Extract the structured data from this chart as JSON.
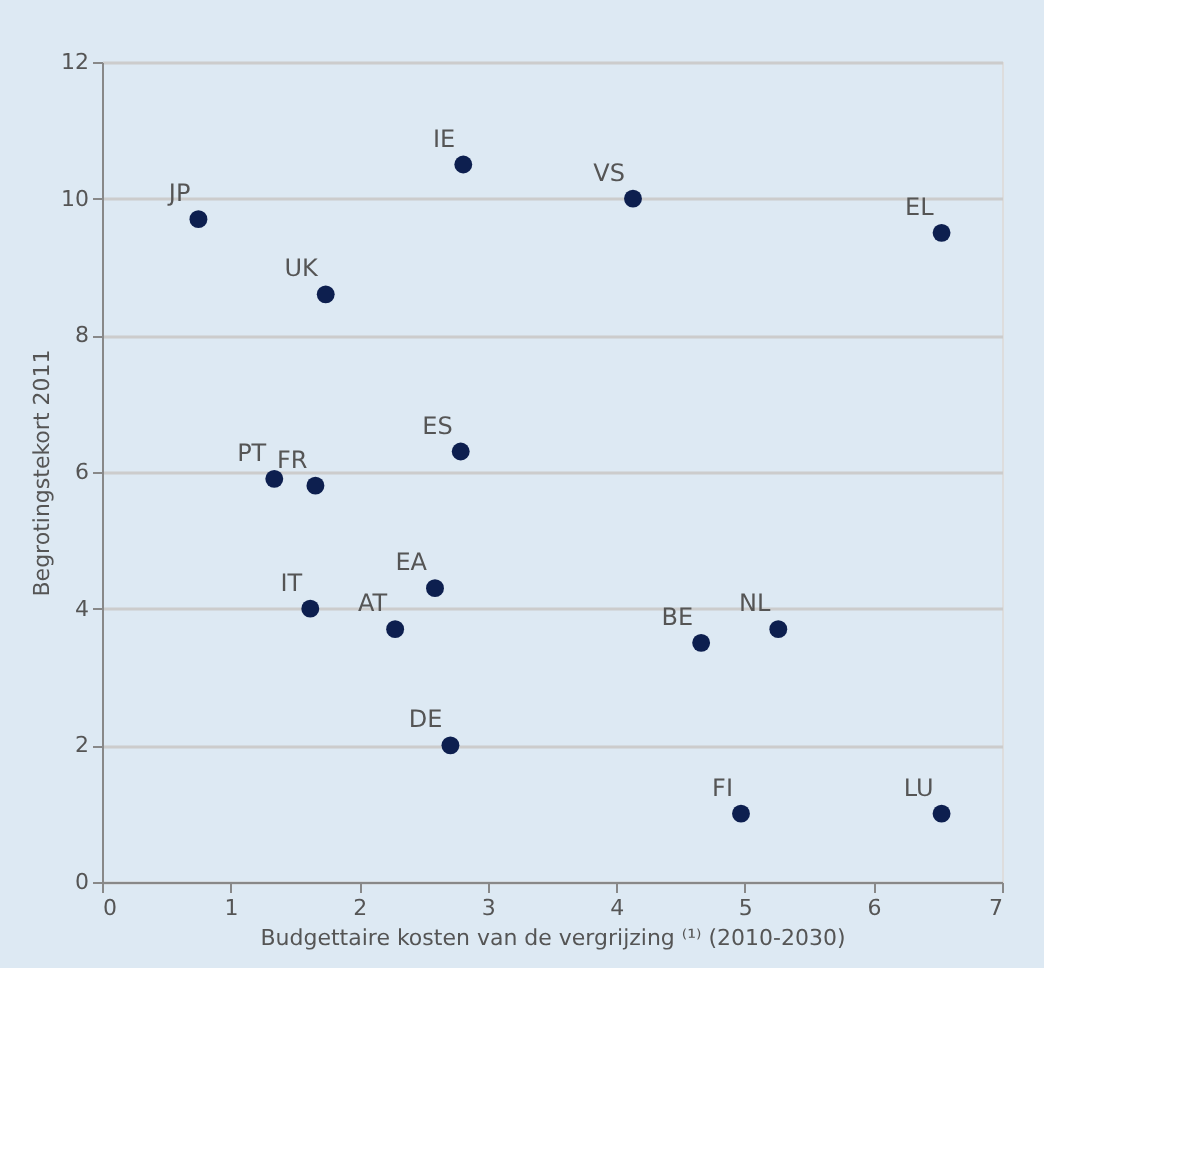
{
  "chart_data": {
    "type": "scatter",
    "xlabel": "Budgettaire kosten van de vergrijzing ⁽¹⁾ (2010-2030)",
    "ylabel": "Begrotingstekort 2011",
    "x": [
      0.75,
      2.81,
      4.13,
      6.53,
      1.74,
      2.79,
      1.34,
      1.66,
      2.59,
      1.62,
      2.28,
      4.66,
      5.26,
      2.71,
      4.97,
      6.53
    ],
    "series": [
      {
        "color": "#0d1f4f",
        "values": [
          9.7,
          10.5,
          10.0,
          9.5,
          8.6,
          6.3,
          5.9,
          5.8,
          4.3,
          4.0,
          3.7,
          3.5,
          3.7,
          2.0,
          1.0,
          1.0
        ]
      }
    ],
    "annotations": [
      {
        "text": "JP",
        "x": 0.75,
        "y": 9.7
      },
      {
        "text": "IE",
        "x": 2.81,
        "y": 10.5
      },
      {
        "text": "VS",
        "x": 4.13,
        "y": 10.0
      },
      {
        "text": "EL",
        "x": 6.53,
        "y": 9.5
      },
      {
        "text": "UK",
        "x": 1.74,
        "y": 8.6
      },
      {
        "text": "ES",
        "x": 2.79,
        "y": 6.3
      },
      {
        "text": "PT",
        "x": 1.34,
        "y": 5.9
      },
      {
        "text": "FR",
        "x": 1.66,
        "y": 5.8
      },
      {
        "text": "EA",
        "x": 2.59,
        "y": 4.3
      },
      {
        "text": "IT",
        "x": 1.62,
        "y": 4.0
      },
      {
        "text": "AT",
        "x": 2.28,
        "y": 3.7
      },
      {
        "text": "BE",
        "x": 4.66,
        "y": 3.5
      },
      {
        "text": "NL",
        "x": 5.26,
        "y": 3.7
      },
      {
        "text": "DE",
        "x": 2.71,
        "y": 2.0
      },
      {
        "text": "FI",
        "x": 4.97,
        "y": 1.0
      },
      {
        "text": "LU",
        "x": 6.53,
        "y": 1.0
      }
    ],
    "xlim": [
      0,
      7
    ],
    "xticks": [
      0,
      1,
      2,
      3,
      4,
      5,
      6,
      7
    ],
    "ylim": [
      0,
      12
    ],
    "yticks": [
      0,
      2,
      4,
      6,
      8,
      10,
      12
    ],
    "grid": "y",
    "marker": "circle"
  }
}
